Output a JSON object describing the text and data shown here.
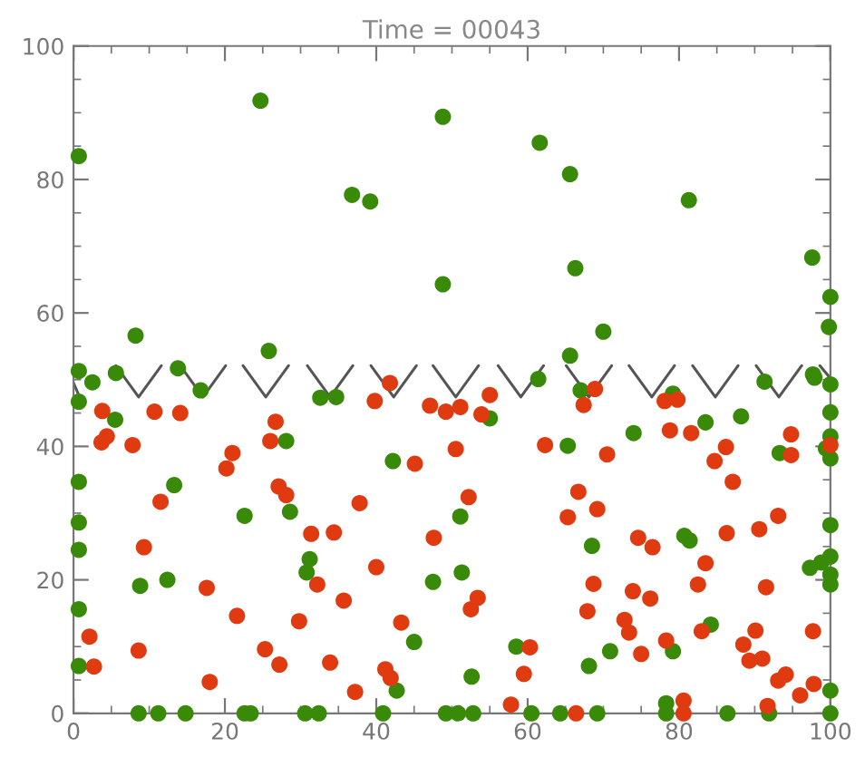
{
  "chart_data": {
    "type": "scatter",
    "title": "Time = 00043",
    "xlim": [
      0,
      100
    ],
    "ylim": [
      0,
      100
    ],
    "xticks": [
      0,
      20,
      40,
      60,
      80,
      100
    ],
    "yticks": [
      0,
      20,
      40,
      60,
      80,
      100
    ],
    "grid": false,
    "legend": false,
    "marker": "circle",
    "series": [
      {
        "color": "#3a8a0a",
        "x": [
          0.7,
          24.7,
          48.8,
          36.8,
          39.2,
          48.8,
          8.2,
          25.8,
          0.7,
          5.6,
          13.8,
          61.6,
          65.6,
          81.3,
          97.6,
          100,
          66.3,
          70,
          65.6,
          99.8,
          97.7,
          2.5,
          16.8,
          0.7,
          5.5,
          32.6,
          34.7,
          28.1,
          42.2,
          0.7,
          13.3,
          22.6,
          28.6,
          0.7,
          0.7,
          31.2,
          30.8,
          8.8,
          12.4,
          47.5,
          0.7,
          45,
          0.7,
          42.7,
          8.6,
          11.2,
          14.8,
          22.6,
          23.4,
          30.6,
          32.4,
          40.9,
          49.2,
          50.8,
          51.1,
          51.3,
          61.4,
          67,
          79.2,
          91.3,
          97.9,
          100,
          55,
          100,
          83.5,
          88.2,
          74,
          65.3,
          100,
          99.4,
          100,
          93.3,
          100,
          68.5,
          80.7,
          81.4,
          97.3,
          98.8,
          100,
          100,
          100,
          84.2,
          58.5,
          70.9,
          79.2,
          68.1,
          52.6,
          100,
          52.8,
          60.5,
          64.3,
          69.2,
          78.3,
          86.4,
          91.9,
          100,
          78.3
        ],
        "values": [
          83.5,
          91.8,
          89.4,
          77.7,
          76.7,
          64.3,
          56.6,
          54.3,
          51.3,
          51,
          51.7,
          85.5,
          80.8,
          76.9,
          68.3,
          62.4,
          66.7,
          57.2,
          53.6,
          57.9,
          50.8,
          49.6,
          48.4,
          46.7,
          44,
          47.3,
          47.4,
          40.8,
          37.8,
          34.7,
          34.2,
          29.6,
          30.2,
          28.6,
          24.5,
          23.1,
          21.1,
          19.1,
          20,
          19.7,
          15.6,
          10.7,
          7.1,
          3.4,
          0,
          0,
          0,
          0,
          0,
          0,
          0,
          0,
          0,
          0,
          29.5,
          21.1,
          50.1,
          48.4,
          47.9,
          49.7,
          50.3,
          49.3,
          44.2,
          45.1,
          43.6,
          44.5,
          42,
          40.1,
          41.5,
          39.7,
          38.2,
          39,
          28.2,
          25.1,
          26.6,
          25.9,
          21.8,
          22.6,
          23.5,
          20.8,
          19.3,
          13.3,
          10,
          9.3,
          9.3,
          7.1,
          5.5,
          3.4,
          0,
          0,
          0,
          0,
          0,
          0,
          0,
          0,
          1.5
        ]
      },
      {
        "color": "#e03a10",
        "x": [
          3.8,
          10.7,
          14.1,
          3.7,
          4.4,
          7.8,
          26.7,
          26,
          21,
          20.2,
          41.8,
          39.8,
          47.1,
          49.2,
          50.5,
          45.1,
          11.5,
          27.1,
          28.1,
          37.8,
          9.3,
          31.4,
          34.4,
          47.6,
          40,
          32.2,
          17.6,
          35.7,
          21.6,
          29.8,
          43.3,
          2.1,
          8.6,
          25.3,
          2.7,
          27.2,
          33.9,
          41.2,
          41.9,
          18,
          37.2,
          55,
          51.1,
          53.9,
          68.9,
          67.4,
          78.1,
          79.8,
          78.8,
          81.6,
          94.8,
          94.8,
          100,
          62.3,
          70.5,
          86.2,
          84.7,
          87.1,
          52.2,
          66.7,
          69.2,
          65.3,
          93.1,
          86.3,
          90.6,
          74.6,
          76.5,
          83.5,
          82.5,
          91.5,
          68.7,
          73.9,
          76.2,
          53.4,
          52.5,
          67.9,
          72.8,
          73.4,
          83,
          90.1,
          97.7,
          78.3,
          88.5,
          60.3,
          75,
          89.3,
          91,
          59.5,
          94.1,
          93.1,
          96,
          97.8,
          57.8,
          80.6,
          91.7,
          66.4,
          80.6
        ],
        "values": [
          45.3,
          45.2,
          45,
          40.6,
          41.5,
          40.2,
          43.7,
          40.8,
          39,
          36.7,
          49.5,
          46.8,
          46.1,
          45.2,
          39.6,
          37.4,
          31.7,
          34,
          32.7,
          31.5,
          24.9,
          26.9,
          27.1,
          26.3,
          21.9,
          19.3,
          18.8,
          16.9,
          14.6,
          13.8,
          13.6,
          11.5,
          9.4,
          9.6,
          7,
          7.3,
          7.6,
          6.6,
          5.3,
          4.7,
          3.2,
          47.7,
          45.9,
          44.8,
          48.6,
          46.2,
          46.8,
          47,
          42.4,
          42,
          41.8,
          38.7,
          40.2,
          40.2,
          38.8,
          39.9,
          37.8,
          34.7,
          32.4,
          33.2,
          30.6,
          29.4,
          29.6,
          27,
          27.6,
          26.3,
          24.9,
          22.5,
          19.3,
          18.9,
          19.4,
          18.3,
          17.2,
          17.3,
          15.6,
          15.3,
          14,
          12.1,
          12.3,
          12.4,
          12.3,
          10.9,
          10.3,
          9.9,
          8.9,
          7.9,
          8.2,
          5.9,
          5.8,
          4.9,
          2.7,
          4.4,
          1.3,
          1.9,
          1.1,
          0,
          0
        ]
      },
      {
        "type": "line",
        "color": "#555555",
        "marker": "none",
        "x": [
          0,
          0.8,
          null,
          5.6,
          8.6,
          11.6,
          null,
          14.1,
          17.1,
          20.1,
          null,
          22.4,
          25.4,
          28.4,
          null,
          30.9,
          33.9,
          36.9,
          null,
          39.3,
          42.3,
          45.3,
          null,
          47.5,
          50.5,
          53.5,
          null,
          56.1,
          59.1,
          62.1,
          null,
          65.1,
          68.1,
          71.1,
          null,
          73.4,
          76.4,
          79.4,
          null,
          81.8,
          84.8,
          87.8,
          null,
          90.2,
          93.2,
          96.2,
          null,
          98.6,
          100
        ],
        "values": [
          49.5,
          47.4,
          null,
          52.1,
          47.4,
          52.1,
          null,
          52.1,
          47.4,
          52.1,
          null,
          52.1,
          47.4,
          52.1,
          null,
          52.1,
          47.4,
          52.1,
          null,
          52.1,
          47.4,
          52.1,
          null,
          52.1,
          47.4,
          52.1,
          null,
          52.1,
          47.4,
          52.1,
          null,
          52.1,
          47.4,
          52.1,
          null,
          52.1,
          47.4,
          52.1,
          null,
          52.1,
          47.4,
          52.1,
          null,
          52.1,
          47.4,
          52.1,
          null,
          52.1,
          50.2
        ]
      }
    ]
  }
}
